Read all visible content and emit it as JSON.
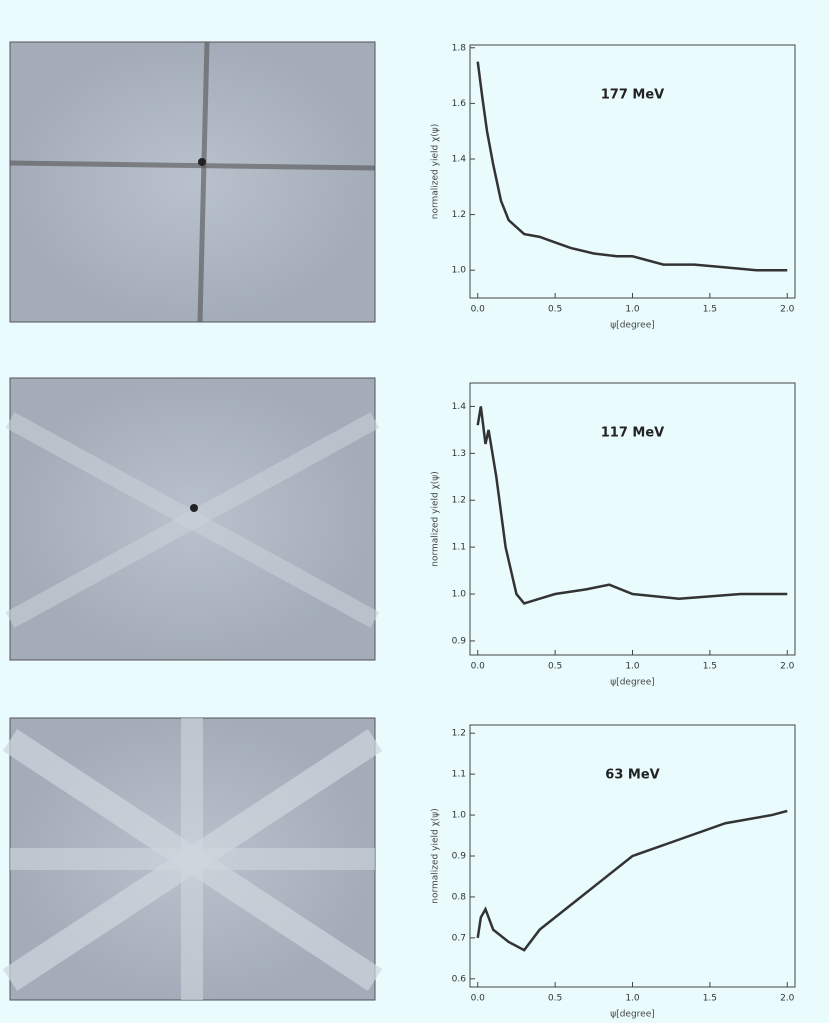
{
  "chart_data": [
    {
      "type": "line",
      "annotation": "177 MeV",
      "y_label": "normalized yield χ(ψ)",
      "x_label": "ψ[degree]",
      "color": "#333333",
      "x": [
        0,
        0.03,
        0.06,
        0.1,
        0.15,
        0.2,
        0.3,
        0.4,
        0.5,
        0.6,
        0.75,
        0.9,
        1.0,
        1.2,
        1.4,
        1.6,
        1.8,
        2.0
      ],
      "values": [
        1.75,
        1.62,
        1.5,
        1.38,
        1.25,
        1.18,
        1.13,
        1.12,
        1.1,
        1.08,
        1.06,
        1.05,
        1.05,
        1.02,
        1.02,
        1.01,
        1.0,
        1.0
      ],
      "xlim": [
        -0.05,
        2.05
      ],
      "ylim": [
        0.9,
        1.81
      ],
      "xticks": [
        {
          "value": 0,
          "label": "0.0"
        },
        {
          "value": 0.5,
          "label": "0.5"
        },
        {
          "value": 1,
          "label": "1.0"
        },
        {
          "value": 1.5,
          "label": "1.5"
        },
        {
          "value": 2,
          "label": "2.0"
        }
      ],
      "yticks": [
        {
          "value": 1,
          "label": "1.0"
        },
        {
          "value": 1.2,
          "label": "1.2"
        },
        {
          "value": 1.4,
          "label": "1.4"
        },
        {
          "value": 1.6,
          "label": "1.6"
        },
        {
          "value": 1.8,
          "label": "1.8"
        }
      ]
    },
    {
      "type": "line",
      "annotation": "117 MeV",
      "y_label": "normalized yield χ(ψ)",
      "x_label": "ψ[degree]",
      "color": "#333333",
      "x": [
        0,
        0.02,
        0.05,
        0.07,
        0.12,
        0.18,
        0.25,
        0.3,
        0.4,
        0.5,
        0.7,
        0.85,
        1.0,
        1.3,
        1.7,
        2.0
      ],
      "values": [
        1.36,
        1.4,
        1.32,
        1.35,
        1.25,
        1.1,
        1.0,
        0.98,
        0.99,
        1.0,
        1.01,
        1.02,
        1.0,
        0.99,
        1.0,
        1.0
      ],
      "xlim": [
        -0.05,
        2.05
      ],
      "ylim": [
        0.87,
        1.45
      ],
      "xticks": [
        {
          "value": 0,
          "label": "0.0"
        },
        {
          "value": 0.5,
          "label": "0.5"
        },
        {
          "value": 1,
          "label": "1.0"
        },
        {
          "value": 1.5,
          "label": "1.5"
        },
        {
          "value": 2,
          "label": "2.0"
        }
      ],
      "yticks": [
        0.9,
        {
          "value": 1,
          "label": "1.0"
        },
        1.1,
        1.2,
        1.3,
        1.4
      ]
    },
    {
      "type": "line",
      "annotation": "63 MeV",
      "y_label": "normalized yield χ(ψ)",
      "x_label": "ψ[degree]",
      "color": "#333333",
      "x": [
        0,
        0.02,
        0.05,
        0.1,
        0.2,
        0.3,
        0.4,
        0.6,
        0.8,
        1.0,
        1.3,
        1.6,
        1.9,
        2.0
      ],
      "values": [
        0.7,
        0.75,
        0.77,
        0.72,
        0.69,
        0.67,
        0.72,
        0.78,
        0.84,
        0.9,
        0.94,
        0.98,
        1.0,
        1.01
      ],
      "xlim": [
        -0.05,
        2.05
      ],
      "ylim": [
        0.58,
        1.22
      ],
      "xticks": [
        {
          "value": 0,
          "label": "0.0"
        },
        {
          "value": 0.5,
          "label": "0.5"
        },
        {
          "value": 1,
          "label": "1.0"
        },
        {
          "value": 1.5,
          "label": "1.5"
        },
        {
          "value": 2,
          "label": "2.0"
        }
      ],
      "yticks": [
        0.6,
        0.7,
        0.8,
        0.9,
        {
          "value": 1,
          "label": "1.0"
        },
        1.1,
        1.2
      ]
    }
  ]
}
